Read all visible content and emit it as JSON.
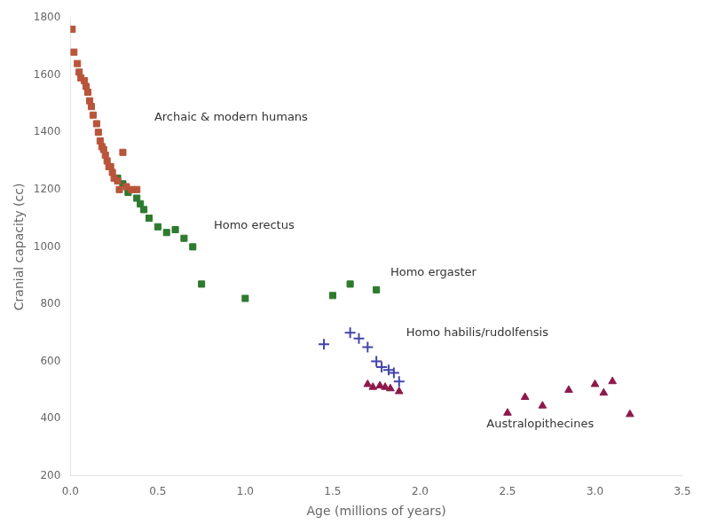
{
  "chart_data": {
    "type": "scatter",
    "xlabel": "Age (millions of years)",
    "ylabel": "Cranial capacity (cc)",
    "xlim": [
      0,
      3.5
    ],
    "ylim": [
      200,
      1800
    ],
    "xticks": [
      {
        "value": 0,
        "label": "0.0"
      },
      0.5,
      {
        "value": 1,
        "label": "1.0"
      },
      1.5,
      {
        "value": 2,
        "label": "2.0"
      },
      2.5,
      {
        "value": 3,
        "label": "3.0"
      },
      3.5
    ],
    "yticks": [
      200,
      400,
      600,
      800,
      1000,
      1200,
      1400,
      1600,
      1800
    ],
    "grid": false,
    "series": [
      {
        "color": "#b8553a",
        "marker": "square",
        "x": [
          0.01,
          0.02,
          0.04,
          0.05,
          0.06,
          0.08,
          0.09,
          0.1,
          0.11,
          0.12,
          0.13,
          0.15,
          0.16,
          0.17,
          0.18,
          0.19,
          0.2,
          0.21,
          0.22,
          0.23,
          0.24,
          0.25,
          0.27,
          0.28,
          0.3,
          0.32,
          0.35,
          0.38
        ],
        "y": [
          1760,
          1680,
          1640,
          1610,
          1590,
          1580,
          1560,
          1540,
          1510,
          1490,
          1460,
          1430,
          1400,
          1370,
          1350,
          1340,
          1320,
          1300,
          1280,
          1280,
          1260,
          1240,
          1230,
          1200,
          1330,
          1210,
          1200,
          1200
        ]
      },
      {
        "color": "#2e7a2e",
        "marker": "square",
        "x": [
          0.27,
          0.3,
          0.33,
          0.38,
          0.4,
          0.42,
          0.45,
          0.5,
          0.55,
          0.6,
          0.65,
          0.7,
          0.75,
          1.0,
          1.5
        ],
        "y": [
          1240,
          1220,
          1190,
          1170,
          1150,
          1130,
          1100,
          1070,
          1050,
          1060,
          1030,
          1000,
          870,
          820,
          830
        ]
      },
      {
        "color": "#2e7a2e",
        "marker": "square",
        "x": [
          1.6,
          1.75
        ],
        "y": [
          870,
          850
        ]
      },
      {
        "color": "#4444aa",
        "marker": "plus",
        "x": [
          1.45,
          1.6,
          1.65,
          1.7,
          1.75,
          1.78,
          1.82,
          1.85,
          1.88
        ],
        "y": [
          660,
          700,
          680,
          650,
          600,
          580,
          570,
          560,
          530
        ]
      },
      {
        "color": "#8b1a4a",
        "marker": "triangle",
        "x": [
          1.7,
          1.73,
          1.77,
          1.8,
          1.83,
          1.88,
          2.5,
          2.6,
          2.7,
          2.85,
          3.0,
          3.05,
          3.1,
          3.2
        ],
        "y": [
          520,
          510,
          515,
          510,
          505,
          495,
          420,
          475,
          445,
          500,
          520,
          490,
          530,
          415
        ]
      }
    ],
    "annotations": [
      {
        "text": "Archaic & modern humans",
        "x": 0.48,
        "y": 1450
      },
      {
        "text": "Homo erectus",
        "x": 0.82,
        "y": 1075
      },
      {
        "text": "Homo ergaster",
        "x": 1.83,
        "y": 910
      },
      {
        "text": "Homo habilis/rudolfensis",
        "x": 1.92,
        "y": 700
      },
      {
        "text": "Australopithecines",
        "x": 2.38,
        "y": 380
      }
    ]
  }
}
